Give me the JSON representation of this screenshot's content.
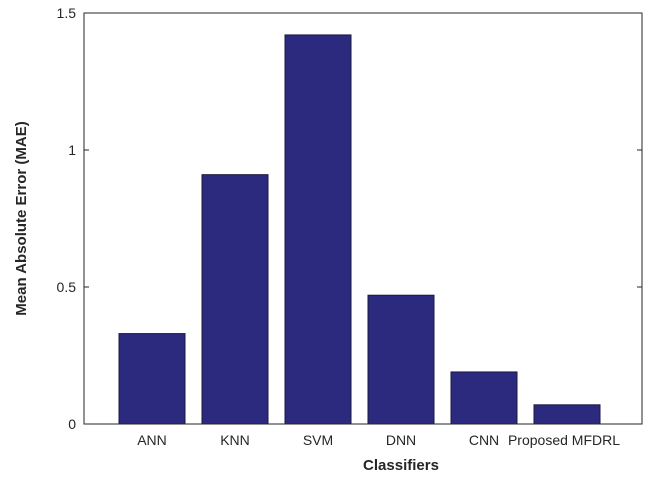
{
  "chart_data": {
    "type": "bar",
    "categories": [
      "ANN",
      "KNN",
      "SVM",
      "DNN",
      "CNN",
      "Proposed MFDRL"
    ],
    "values": [
      0.33,
      0.91,
      1.42,
      0.47,
      0.19,
      0.07
    ],
    "xlabel": "Classifiers",
    "ylabel": "Mean Absolute Error (MAE)",
    "ylim": [
      0,
      1.5
    ],
    "yticks": [
      0,
      0.5,
      1,
      1.5
    ],
    "ytick_labels": [
      "0",
      "0.5",
      "1",
      "1.5"
    ],
    "grid": false,
    "bar_color": "#2b2a7e"
  }
}
